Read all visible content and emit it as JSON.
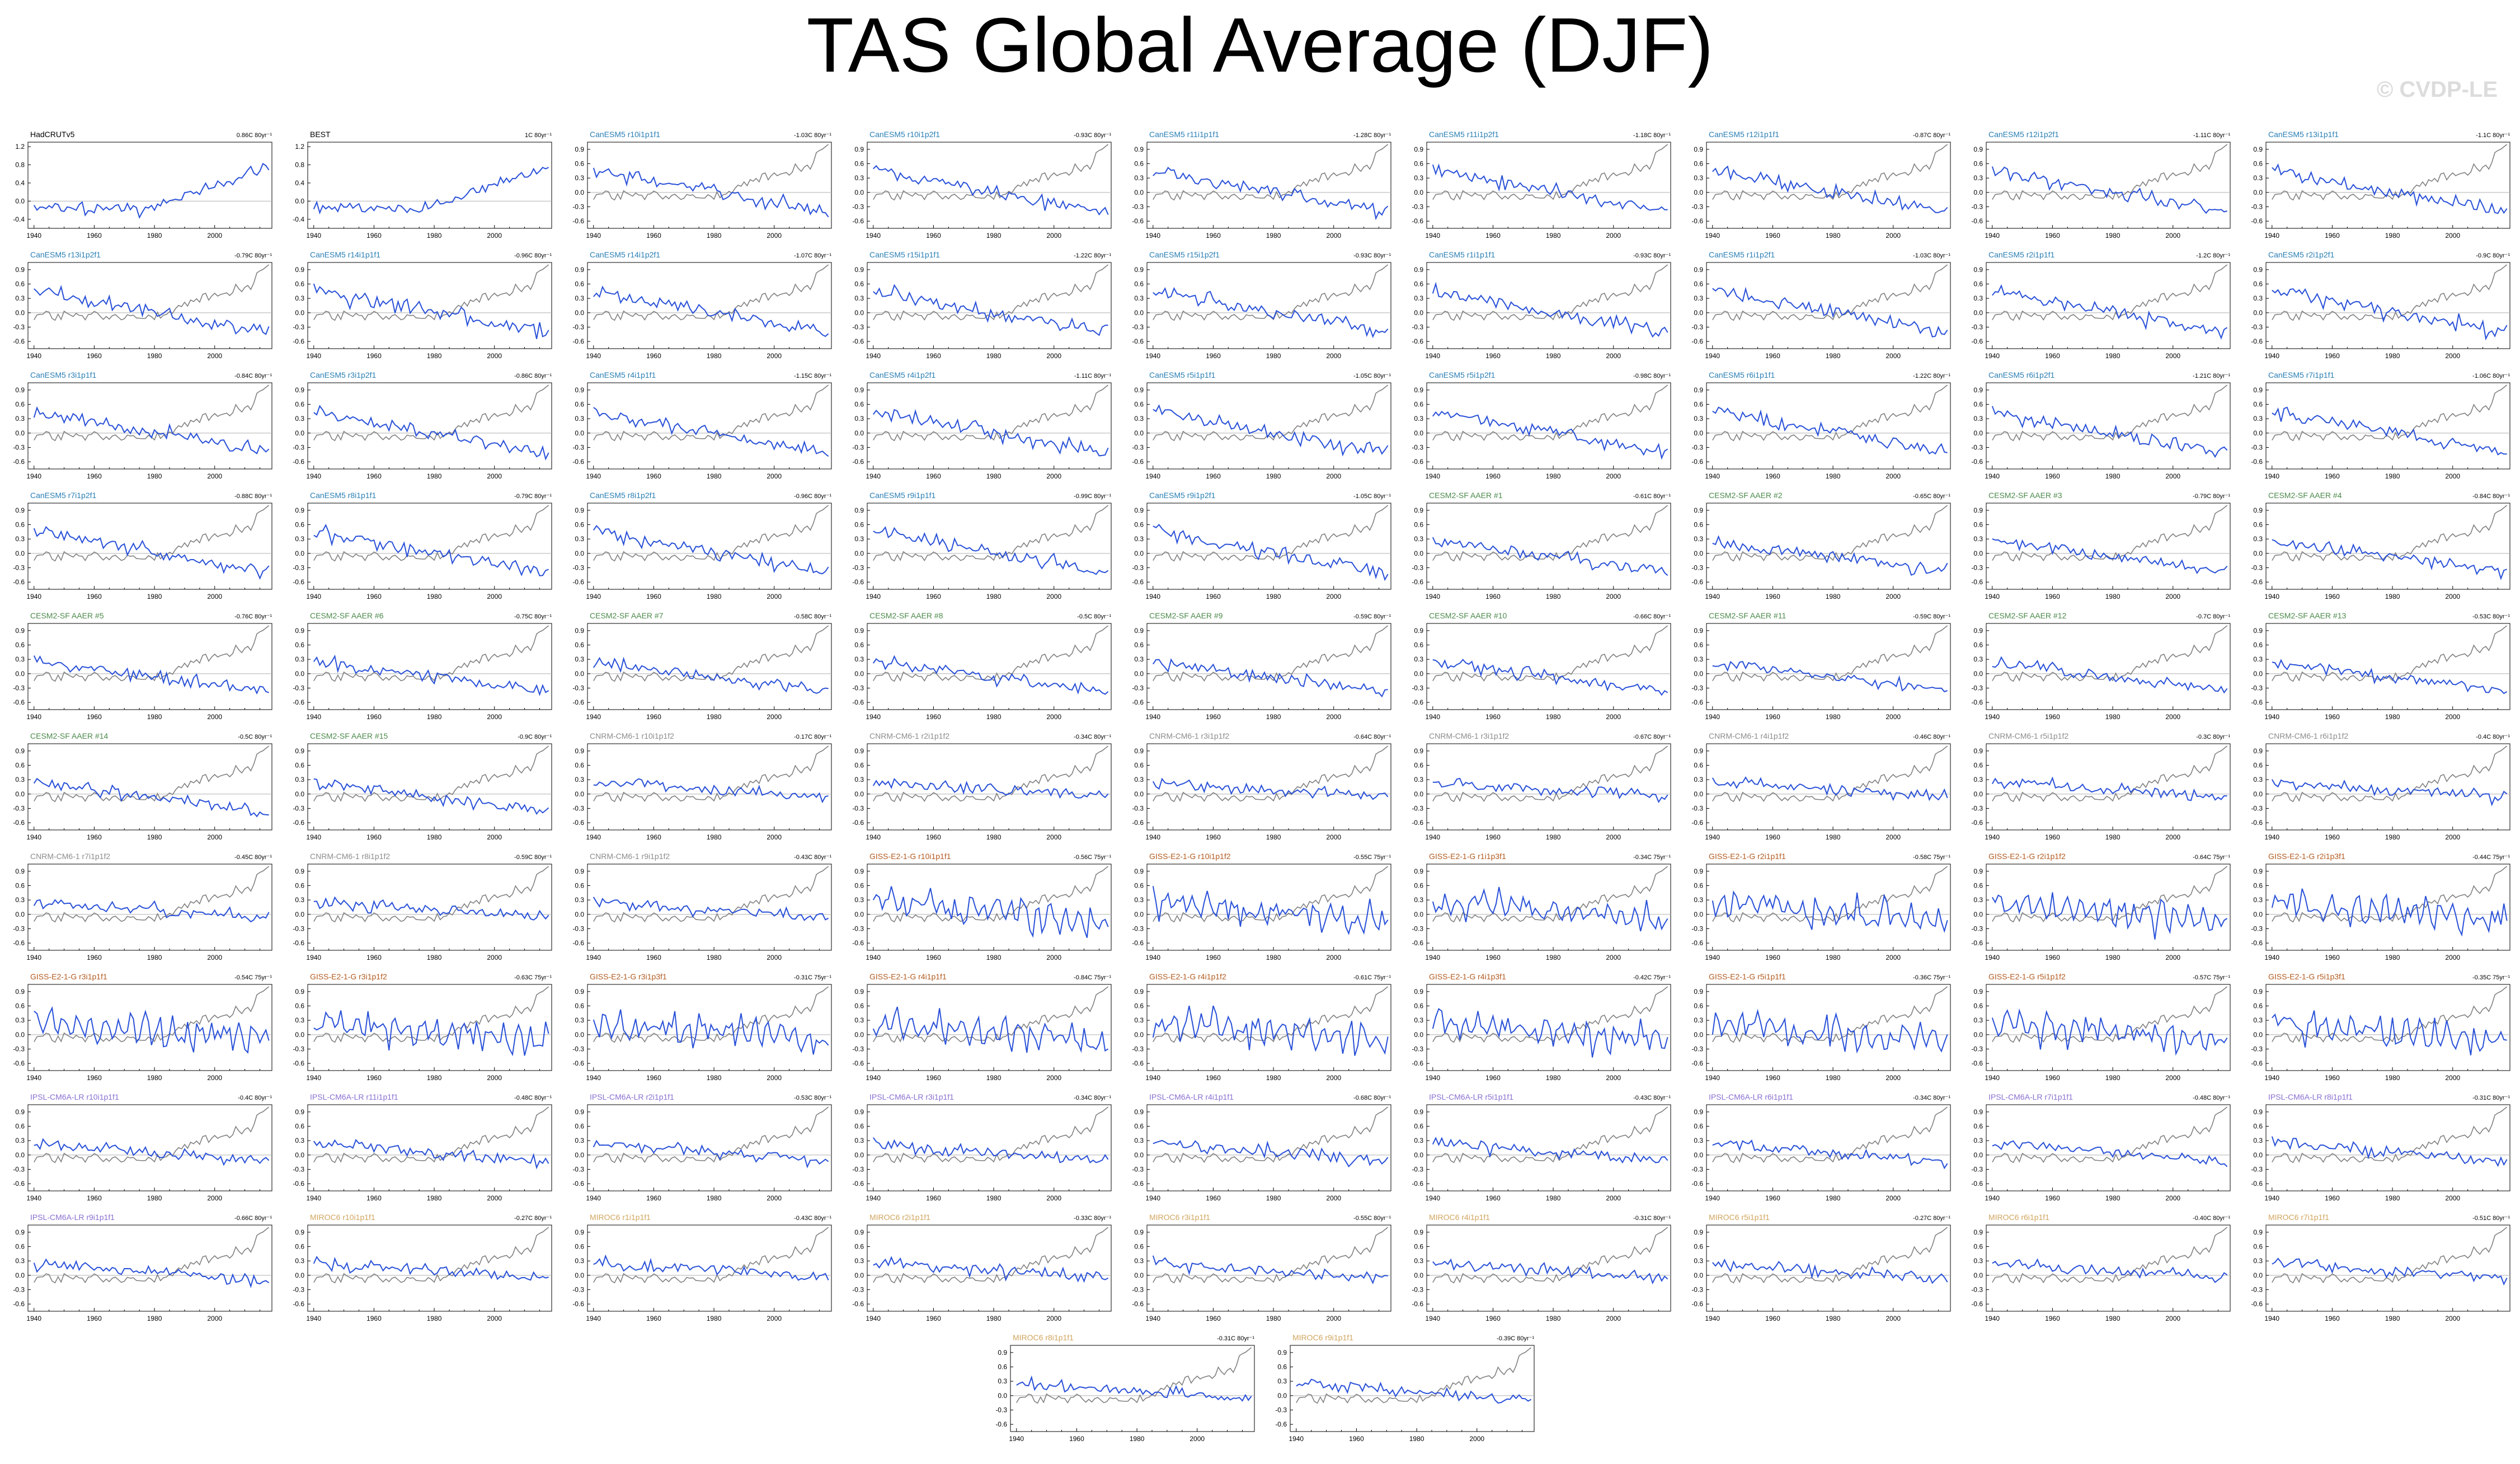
{
  "title": "TAS Global Average (DJF)",
  "watermark": "© CVDP-LE",
  "chart_data": {
    "type": "line",
    "x_range": [
      1940,
      2018
    ],
    "xticks": [
      "1940",
      "1960",
      "1980",
      "2000"
    ],
    "yticks_obs": [
      "1.2",
      "0.8",
      "0.4",
      "0.0",
      "-0.4"
    ],
    "yticks_model": [
      "0.9",
      "0.6",
      "0.3",
      "0.0",
      "-0.3",
      "-0.6"
    ],
    "colors": {
      "obs_title": "#000000",
      "CanESM5": "#2a7fb5",
      "CESM2-SF AAER": "#4c8a4c",
      "CNRM-CM6-1": "#8c8c8c",
      "GISS-E2-1-G": "#b35a1f",
      "IPSL-CM6A-LR": "#8a6fd1",
      "MIROC6": "#d1a55e",
      "series_blue": "#2850d8",
      "series_obs": "#808080",
      "zero_line": "#b0b0b0"
    },
    "panels": [
      {
        "title": "HadCRUTv5",
        "group": "obs",
        "trend": "0.86C 80yr⁻¹"
      },
      {
        "title": "BEST",
        "group": "obs",
        "trend": "1C 80yr⁻¹"
      },
      {
        "title": "CanESM5 r10i1p1f1",
        "group": "CanESM5",
        "trend": "-1.03C 80yr⁻¹"
      },
      {
        "title": "CanESM5 r10i1p2f1",
        "group": "CanESM5",
        "trend": "-0.93C 80yr⁻¹"
      },
      {
        "title": "CanESM5 r11i1p1f1",
        "group": "CanESM5",
        "trend": "-1.28C 80yr⁻¹"
      },
      {
        "title": "CanESM5 r11i1p2f1",
        "group": "CanESM5",
        "trend": "-1.18C 80yr⁻¹"
      },
      {
        "title": "CanESM5 r12i1p1f1",
        "group": "CanESM5",
        "trend": "-0.87C 80yr⁻¹"
      },
      {
        "title": "CanESM5 r12i1p2f1",
        "group": "CanESM5",
        "trend": "-1.11C 80yr⁻¹"
      },
      {
        "title": "CanESM5 r13i1p1f1",
        "group": "CanESM5",
        "trend": "-1.1C 80yr⁻¹"
      },
      {
        "title": "CanESM5 r13i1p2f1",
        "group": "CanESM5",
        "trend": "-0.79C 80yr⁻¹"
      },
      {
        "title": "CanESM5 r14i1p1f1",
        "group": "CanESM5",
        "trend": "-0.96C 80yr⁻¹"
      },
      {
        "title": "CanESM5 r14i1p2f1",
        "group": "CanESM5",
        "trend": "-1.07C 80yr⁻¹"
      },
      {
        "title": "CanESM5 r15i1p1f1",
        "group": "CanESM5",
        "trend": "-1.22C 80yr⁻¹"
      },
      {
        "title": "CanESM5 r15i1p2f1",
        "group": "CanESM5",
        "trend": "-0.93C 80yr⁻¹"
      },
      {
        "title": "CanESM5 r1i1p1f1",
        "group": "CanESM5",
        "trend": "-0.93C 80yr⁻¹"
      },
      {
        "title": "CanESM5 r1i1p2f1",
        "group": "CanESM5",
        "trend": "-1.03C 80yr⁻¹"
      },
      {
        "title": "CanESM5 r2i1p1f1",
        "group": "CanESM5",
        "trend": "-1.2C 80yr⁻¹"
      },
      {
        "title": "CanESM5 r2i1p2f1",
        "group": "CanESM5",
        "trend": "-0.9C 80yr⁻¹"
      },
      {
        "title": "CanESM5 r3i1p1f1",
        "group": "CanESM5",
        "trend": "-0.84C 80yr⁻¹"
      },
      {
        "title": "CanESM5 r3i1p2f1",
        "group": "CanESM5",
        "trend": "-0.86C 80yr⁻¹"
      },
      {
        "title": "CanESM5 r4i1p1f1",
        "group": "CanESM5",
        "trend": "-1.15C 80yr⁻¹"
      },
      {
        "title": "CanESM5 r4i1p2f1",
        "group": "CanESM5",
        "trend": "-1.11C 80yr⁻¹"
      },
      {
        "title": "CanESM5 r5i1p1f1",
        "group": "CanESM5",
        "trend": "-1.05C 80yr⁻¹"
      },
      {
        "title": "CanESM5 r5i1p2f1",
        "group": "CanESM5",
        "trend": "-0.98C 80yr⁻¹"
      },
      {
        "title": "CanESM5 r6i1p1f1",
        "group": "CanESM5",
        "trend": "-1.22C 80yr⁻¹"
      },
      {
        "title": "CanESM5 r6i1p2f1",
        "group": "CanESM5",
        "trend": "-1.21C 80yr⁻¹"
      },
      {
        "title": "CanESM5 r7i1p1f1",
        "group": "CanESM5",
        "trend": "-1.06C 80yr⁻¹"
      },
      {
        "title": "CanESM5 r7i1p2f1",
        "group": "CanESM5",
        "trend": "-0.88C 80yr⁻¹"
      },
      {
        "title": "CanESM5 r8i1p1f1",
        "group": "CanESM5",
        "trend": "-0.79C 80yr⁻¹"
      },
      {
        "title": "CanESM5 r8i1p2f1",
        "group": "CanESM5",
        "trend": "-0.96C 80yr⁻¹"
      },
      {
        "title": "CanESM5 r9i1p1f1",
        "group": "CanESM5",
        "trend": "-0.99C 80yr⁻¹"
      },
      {
        "title": "CanESM5 r9i1p2f1",
        "group": "CanESM5",
        "trend": "-1.05C 80yr⁻¹"
      },
      {
        "title": "CESM2-SF AAER #1",
        "group": "CESM2-SF AAER",
        "trend": "-0.61C 80yr⁻¹"
      },
      {
        "title": "CESM2-SF AAER #2",
        "group": "CESM2-SF AAER",
        "trend": "-0.65C 80yr⁻¹"
      },
      {
        "title": "CESM2-SF AAER #3",
        "group": "CESM2-SF AAER",
        "trend": "-0.79C 80yr⁻¹"
      },
      {
        "title": "CESM2-SF AAER #4",
        "group": "CESM2-SF AAER",
        "trend": "-0.84C 80yr⁻¹"
      },
      {
        "title": "CESM2-SF AAER #5",
        "group": "CESM2-SF AAER",
        "trend": "-0.76C 80yr⁻¹"
      },
      {
        "title": "CESM2-SF AAER #6",
        "group": "CESM2-SF AAER",
        "trend": "-0.75C 80yr⁻¹"
      },
      {
        "title": "CESM2-SF AAER #7",
        "group": "CESM2-SF AAER",
        "trend": "-0.58C 80yr⁻¹"
      },
      {
        "title": "CESM2-SF AAER #8",
        "group": "CESM2-SF AAER",
        "trend": "-0.5C 80yr⁻¹"
      },
      {
        "title": "CESM2-SF AAER #9",
        "group": "CESM2-SF AAER",
        "trend": "-0.59C 80yr⁻¹"
      },
      {
        "title": "CESM2-SF AAER #10",
        "group": "CESM2-SF AAER",
        "trend": "-0.66C 80yr⁻¹"
      },
      {
        "title": "CESM2-SF AAER #11",
        "group": "CESM2-SF AAER",
        "trend": "-0.59C 80yr⁻¹"
      },
      {
        "title": "CESM2-SF AAER #12",
        "group": "CESM2-SF AAER",
        "trend": "-0.7C 80yr⁻¹"
      },
      {
        "title": "CESM2-SF AAER #13",
        "group": "CESM2-SF AAER",
        "trend": "-0.53C 80yr⁻¹"
      },
      {
        "title": "CESM2-SF AAER #14",
        "group": "CESM2-SF AAER",
        "trend": "-0.5C 80yr⁻¹"
      },
      {
        "title": "CESM2-SF AAER #15",
        "group": "CESM2-SF AAER",
        "trend": "-0.9C 80yr⁻¹"
      },
      {
        "title": "CNRM-CM6-1 r10i1p1f2",
        "group": "CNRM-CM6-1",
        "trend": "-0.17C 80yr⁻¹"
      },
      {
        "title": "CNRM-CM6-1 r2i1p1f2",
        "group": "CNRM-CM6-1",
        "trend": "-0.34C 80yr⁻¹"
      },
      {
        "title": "CNRM-CM6-1 r3i1p1f2",
        "group": "CNRM-CM6-1",
        "trend": "-0.64C 80yr⁻¹"
      },
      {
        "title": "CNRM-CM6-1 r3i1p1f2",
        "group": "CNRM-CM6-1",
        "trend": "-0.67C 80yr⁻¹"
      },
      {
        "title": "CNRM-CM6-1 r4i1p1f2",
        "group": "CNRM-CM6-1",
        "trend": "-0.46C 80yr⁻¹"
      },
      {
        "title": "CNRM-CM6-1 r5i1p1f2",
        "group": "CNRM-CM6-1",
        "trend": "-0.3C 80yr⁻¹"
      },
      {
        "title": "CNRM-CM6-1 r6i1p1f2",
        "group": "CNRM-CM6-1",
        "trend": "-0.4C 80yr⁻¹"
      },
      {
        "title": "CNRM-CM6-1 r7i1p1f2",
        "group": "CNRM-CM6-1",
        "trend": "-0.45C 80yr⁻¹"
      },
      {
        "title": "CNRM-CM6-1 r8i1p1f2",
        "group": "CNRM-CM6-1",
        "trend": "-0.59C 80yr⁻¹"
      },
      {
        "title": "CNRM-CM6-1 r9i1p1f2",
        "group": "CNRM-CM6-1",
        "trend": "-0.43C 80yr⁻¹"
      },
      {
        "title": "GISS-E2-1-G r10i1p1f1",
        "group": "GISS-E2-1-G",
        "trend": "-0.56C 75yr⁻¹"
      },
      {
        "title": "GISS-E2-1-G r10i1p1f2",
        "group": "GISS-E2-1-G",
        "trend": "-0.55C 75yr⁻¹"
      },
      {
        "title": "GISS-E2-1-G r1i1p3f1",
        "group": "GISS-E2-1-G",
        "trend": "-0.34C 75yr⁻¹"
      },
      {
        "title": "GISS-E2-1-G r2i1p1f1",
        "group": "GISS-E2-1-G",
        "trend": "-0.58C 75yr⁻¹"
      },
      {
        "title": "GISS-E2-1-G r2i1p1f2",
        "group": "GISS-E2-1-G",
        "trend": "-0.64C 75yr⁻¹"
      },
      {
        "title": "GISS-E2-1-G r2i1p3f1",
        "group": "GISS-E2-1-G",
        "trend": "-0.44C 75yr⁻¹"
      },
      {
        "title": "GISS-E2-1-G r3i1p1f1",
        "group": "GISS-E2-1-G",
        "trend": "-0.54C 75yr⁻¹"
      },
      {
        "title": "GISS-E2-1-G r3i1p1f2",
        "group": "GISS-E2-1-G",
        "trend": "-0.63C 75yr⁻¹"
      },
      {
        "title": "GISS-E2-1-G r3i1p3f1",
        "group": "GISS-E2-1-G",
        "trend": "-0.31C 75yr⁻¹"
      },
      {
        "title": "GISS-E2-1-G r4i1p1f1",
        "group": "GISS-E2-1-G",
        "trend": "-0.84C 75yr⁻¹"
      },
      {
        "title": "GISS-E2-1-G r4i1p1f2",
        "group": "GISS-E2-1-G",
        "trend": "-0.61C 75yr⁻¹"
      },
      {
        "title": "GISS-E2-1-G r4i1p3f1",
        "group": "GISS-E2-1-G",
        "trend": "-0.42C 75yr⁻¹"
      },
      {
        "title": "GISS-E2-1-G r5i1p1f1",
        "group": "GISS-E2-1-G",
        "trend": "-0.36C 75yr⁻¹"
      },
      {
        "title": "GISS-E2-1-G r5i1p1f2",
        "group": "GISS-E2-1-G",
        "trend": "-0.57C 75yr⁻¹"
      },
      {
        "title": "GISS-E2-1-G r5i1p3f1",
        "group": "GISS-E2-1-G",
        "trend": "-0.35C 75yr⁻¹"
      },
      {
        "title": "IPSL-CM6A-LR r10i1p1f1",
        "group": "IPSL-CM6A-LR",
        "trend": "-0.4C 80yr⁻¹"
      },
      {
        "title": "IPSL-CM6A-LR r11i1p1f1",
        "group": "IPSL-CM6A-LR",
        "trend": "-0.48C 80yr⁻¹"
      },
      {
        "title": "IPSL-CM6A-LR r2i1p1f1",
        "group": "IPSL-CM6A-LR",
        "trend": "-0.53C 80yr⁻¹"
      },
      {
        "title": "IPSL-CM6A-LR r3i1p1f1",
        "group": "IPSL-CM6A-LR",
        "trend": "-0.34C 80yr⁻¹"
      },
      {
        "title": "IPSL-CM6A-LR r4i1p1f1",
        "group": "IPSL-CM6A-LR",
        "trend": "-0.68C 80yr⁻¹"
      },
      {
        "title": "IPSL-CM6A-LR r5i1p1f1",
        "group": "IPSL-CM6A-LR",
        "trend": "-0.43C 80yr⁻¹"
      },
      {
        "title": "IPSL-CM6A-LR r6i1p1f1",
        "group": "IPSL-CM6A-LR",
        "trend": "-0.34C 80yr⁻¹"
      },
      {
        "title": "IPSL-CM6A-LR r7i1p1f1",
        "group": "IPSL-CM6A-LR",
        "trend": "-0.48C 80yr⁻¹"
      },
      {
        "title": "IPSL-CM6A-LR r8i1p1f1",
        "group": "IPSL-CM6A-LR",
        "trend": "-0.31C 80yr⁻¹"
      },
      {
        "title": "IPSL-CM6A-LR r9i1p1f1",
        "group": "IPSL-CM6A-LR",
        "trend": "-0.66C 80yr⁻¹"
      },
      {
        "title": "MIROC6 r10i1p1f1",
        "group": "MIROC6",
        "trend": "-0.27C 80yr⁻¹"
      },
      {
        "title": "MIROC6 r1i1p1f1",
        "group": "MIROC6",
        "trend": "-0.43C 80yr⁻¹"
      },
      {
        "title": "MIROC6 r2i1p1f1",
        "group": "MIROC6",
        "trend": "-0.33C 80yr⁻¹"
      },
      {
        "title": "MIROC6 r3i1p1f1",
        "group": "MIROC6",
        "trend": "-0.55C 80yr⁻¹"
      },
      {
        "title": "MIROC6 r4i1p1f1",
        "group": "MIROC6",
        "trend": "-0.31C 80yr⁻¹"
      },
      {
        "title": "MIROC6 r5i1p1f1",
        "group": "MIROC6",
        "trend": "-0.27C 80yr⁻¹"
      },
      {
        "title": "MIROC6 r6i1p1f1",
        "group": "MIROC6",
        "trend": "-0.40C 80yr⁻¹"
      },
      {
        "title": "MIROC6 r7i1p1f1",
        "group": "MIROC6",
        "trend": "-0.51C 80yr⁻¹"
      },
      {
        "title": "MIROC6 r8i1p1f1",
        "group": "MIROC6",
        "trend": "-0.31C 80yr⁻¹"
      },
      {
        "title": "MIROC6 r9i1p1f1",
        "group": "MIROC6",
        "trend": "-0.39C 80yr⁻¹"
      }
    ]
  }
}
